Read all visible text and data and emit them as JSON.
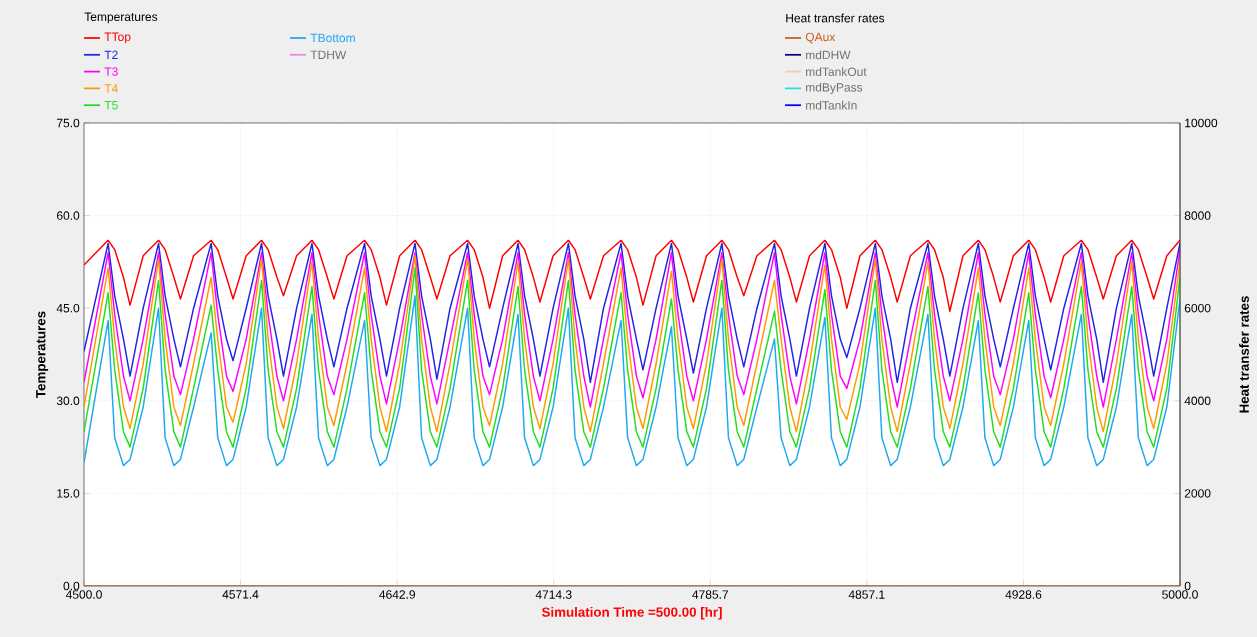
{
  "chart_data": {
    "type": "line",
    "xlabel": "Simulation Time =500.00 [hr]",
    "ylabel": "Temperatures",
    "y2label": "Heat transfer rates",
    "xlim": [
      4500,
      5000
    ],
    "ylim": [
      0,
      75
    ],
    "y2lim": [
      0,
      10000
    ],
    "xticks": [
      {
        "value": 4500,
        "label": "4500.0"
      },
      4571.4,
      4642.9,
      4714.3,
      4785.7,
      4857.1,
      4928.6,
      {
        "value": 5000,
        "label": "5000.0"
      }
    ],
    "yticks": [
      {
        "value": 0,
        "label": "0.0"
      },
      {
        "value": 15,
        "label": "15.0"
      },
      {
        "value": 30,
        "label": "30.0"
      },
      {
        "value": 45,
        "label": "45.0"
      },
      {
        "value": 60,
        "label": "60.0"
      },
      {
        "value": 75,
        "label": "75.0"
      }
    ],
    "y2ticks": [
      0,
      2000,
      4000,
      6000,
      8000,
      10000
    ],
    "grid": true,
    "legend": "top",
    "legend_title": "Temperatures",
    "annotations": [
      "Heat transfer rates"
    ],
    "x": [
      4500,
      4511,
      4514,
      4518,
      4521,
      4527,
      4534,
      4537,
      4541,
      4544,
      4550,
      4558,
      4561,
      4565,
      4568,
      4574,
      4581,
      4584,
      4588,
      4591,
      4597,
      4604,
      4607,
      4611,
      4614,
      4620,
      4628,
      4631,
      4635,
      4638,
      4644,
      4651,
      4654,
      4658,
      4661,
      4667,
      4675,
      4678,
      4682,
      4685,
      4691,
      4698,
      4701,
      4705,
      4708,
      4714,
      4721,
      4724,
      4728,
      4731,
      4737,
      4745,
      4748,
      4752,
      4755,
      4761,
      4768,
      4771,
      4775,
      4778,
      4784,
      4791,
      4794,
      4798,
      4801,
      4807,
      4815,
      4818,
      4822,
      4825,
      4831,
      4838,
      4841,
      4845,
      4848,
      4854,
      4861,
      4864,
      4868,
      4871,
      4877,
      4885,
      4888,
      4892,
      4895,
      4901,
      4908,
      4911,
      4915,
      4918,
      4924,
      4931,
      4934,
      4938,
      4941,
      4947,
      4955,
      4958,
      4962,
      4965,
      4971,
      4978,
      4981,
      4985,
      4988,
      4994,
      5000
    ],
    "series": [
      {
        "name": "TTop",
        "color": "#ff0000",
        "values": [
          52,
          56,
          54.5,
          50,
          45.5,
          53.5,
          56,
          54.5,
          50,
          46.5,
          53.5,
          56,
          54.5,
          50,
          46.5,
          53.5,
          56,
          54.5,
          50,
          47,
          53.5,
          56,
          54.5,
          50,
          46.5,
          53.5,
          56,
          54.5,
          50,
          45.5,
          53.5,
          56,
          54.5,
          50,
          46.5,
          53.5,
          56,
          54.5,
          50,
          45,
          53.5,
          56,
          54.5,
          50,
          46,
          53.5,
          56,
          54.5,
          50,
          46.5,
          53.5,
          56,
          54.5,
          50,
          45.5,
          53.5,
          56,
          54.5,
          50,
          46,
          53.5,
          56,
          54.5,
          50,
          47,
          53.5,
          56,
          54.5,
          50,
          46,
          53.5,
          56,
          54.5,
          50,
          45,
          53.5,
          56,
          54.5,
          50,
          46,
          53.5,
          56,
          54.5,
          50,
          44.5,
          53.5,
          56,
          54.5,
          50,
          46,
          53.5,
          56,
          54.5,
          50,
          46,
          53.5,
          56,
          54.5,
          50,
          46.5,
          53.5,
          56,
          54.5,
          50,
          46.5,
          53.5,
          56
        ]
      },
      {
        "name": "T2",
        "color": "#2222e6",
        "values": [
          38,
          55.5,
          47,
          40,
          34,
          45,
          55.5,
          47,
          40,
          35.5,
          45,
          55.5,
          47,
          40,
          36.5,
          45,
          55.5,
          47,
          40,
          34,
          45,
          55.5,
          47,
          40,
          35.5,
          45,
          55.5,
          47,
          40,
          34,
          45,
          55.5,
          47,
          40,
          33.5,
          45,
          55.5,
          47,
          40,
          35.5,
          45,
          55.5,
          47,
          40,
          34,
          45,
          55.5,
          47,
          40,
          33,
          45,
          55.5,
          47,
          40,
          35,
          45,
          55.5,
          47,
          40,
          34.5,
          45,
          55.5,
          47,
          40,
          35.5,
          45,
          55.5,
          47,
          40,
          34,
          45,
          55.5,
          47,
          40,
          37,
          45,
          55.5,
          47,
          40,
          33,
          45,
          55.5,
          47,
          40,
          34,
          45,
          55.5,
          47,
          40,
          35.5,
          45,
          55.5,
          47,
          40,
          35,
          45,
          55.5,
          47,
          40,
          33,
          45,
          55.5,
          47,
          40,
          34,
          45,
          55.5
        ]
      },
      {
        "name": "T3",
        "color": "#ff00ff",
        "values": [
          33,
          54,
          44,
          34,
          30,
          40,
          54,
          44,
          34,
          31,
          40,
          54,
          44,
          34,
          31.5,
          40,
          54,
          44,
          34,
          30,
          40,
          54,
          44,
          34,
          31,
          40,
          54,
          44,
          34,
          29.5,
          40,
          54,
          44,
          34,
          29.5,
          40,
          54,
          44,
          34,
          31,
          40,
          54,
          44,
          34,
          30,
          40,
          54,
          44,
          34,
          29,
          40,
          54,
          44,
          34,
          30.5,
          40,
          54,
          44,
          34,
          30,
          40,
          54,
          44,
          34,
          31,
          40,
          54,
          44,
          34,
          29.5,
          40,
          54,
          44,
          34,
          32,
          40,
          54,
          44,
          34,
          29,
          40,
          54,
          44,
          34,
          30,
          40,
          54,
          44,
          34,
          31,
          40,
          54,
          44,
          34,
          30.5,
          40,
          54,
          44,
          34,
          29,
          40,
          54,
          44,
          34,
          30,
          40,
          54.5
        ]
      },
      {
        "name": "T4",
        "color": "#ff9900",
        "values": [
          29,
          51.5,
          40,
          29,
          25.5,
          36,
          53,
          40,
          29,
          26,
          36,
          50,
          40,
          29,
          26.5,
          36,
          53,
          40,
          29,
          25.5,
          36,
          52.5,
          40,
          29,
          26,
          36,
          51.5,
          40,
          29,
          25,
          36,
          53.5,
          40,
          29,
          25,
          36,
          53,
          40,
          29,
          26,
          36,
          52.5,
          40,
          29,
          25.5,
          36,
          53,
          40,
          29,
          25,
          36,
          51.5,
          40,
          29,
          25.5,
          36,
          51,
          40,
          29,
          25.5,
          36,
          53,
          40,
          29,
          26,
          36,
          49.5,
          40,
          29,
          25,
          36,
          52,
          40,
          29,
          27,
          36,
          53,
          40,
          29,
          25,
          36,
          52.5,
          40,
          29,
          25.5,
          36,
          51.5,
          40,
          29,
          26,
          36,
          51.5,
          40,
          29,
          26,
          36,
          52.5,
          40,
          29,
          25,
          36,
          52.5,
          40,
          29,
          25.5,
          36,
          52.5
        ]
      },
      {
        "name": "T5",
        "color": "#22dd22",
        "values": [
          25,
          47.5,
          35,
          25,
          22.5,
          32,
          49.5,
          35,
          25,
          22.5,
          32,
          45.5,
          35,
          25,
          22.5,
          32,
          49.5,
          35,
          25,
          22.5,
          32,
          48.5,
          35,
          25,
          22.5,
          32,
          47.5,
          35,
          25,
          22.5,
          32,
          51.5,
          35,
          25,
          22.5,
          32,
          49.5,
          35,
          25,
          22.5,
          32,
          48.5,
          35,
          25,
          22.5,
          32,
          49.5,
          35,
          25,
          22.5,
          32,
          47.5,
          35,
          25,
          22.5,
          32,
          46.5,
          35,
          25,
          22.5,
          32,
          49.5,
          35,
          25,
          22.5,
          32,
          44.5,
          35,
          25,
          22.5,
          32,
          48,
          35,
          25,
          22.5,
          32,
          49.5,
          35,
          25,
          22.5,
          32,
          48.5,
          35,
          25,
          22.5,
          32,
          47.5,
          35,
          25,
          22.5,
          32,
          47.5,
          35,
          25,
          22.5,
          32,
          48.5,
          35,
          25,
          22.5,
          32,
          48.5,
          35,
          25,
          22.5,
          32,
          50
        ]
      },
      {
        "name": "TBottom",
        "color": "#1ea8f0",
        "values": [
          20,
          43,
          24,
          19.5,
          20.5,
          29,
          45,
          24,
          19.5,
          20.5,
          29,
          41,
          24,
          19.5,
          20.5,
          29,
          45,
          24,
          19.5,
          20.5,
          29,
          44,
          24,
          19.5,
          20.5,
          29,
          43,
          24,
          19.5,
          20.5,
          29,
          47,
          24,
          19.5,
          20.5,
          29,
          45,
          24,
          19.5,
          20.5,
          29,
          44,
          24,
          19.5,
          20.5,
          29,
          45,
          24,
          19.5,
          20.5,
          29,
          43,
          24,
          19.5,
          20.5,
          29,
          42,
          24,
          19.5,
          20.5,
          29,
          45,
          24,
          19.5,
          20.5,
          29,
          40,
          24,
          19.5,
          20.5,
          29,
          43.5,
          24,
          19.5,
          20.5,
          29,
          45,
          24,
          19.5,
          20.5,
          29,
          44,
          24,
          19.5,
          20.5,
          29,
          43,
          24,
          19.5,
          20.5,
          29,
          43,
          24,
          19.5,
          20.5,
          29,
          44,
          24,
          19.5,
          20.5,
          29,
          44,
          24,
          19.5,
          20.5,
          29,
          46.5
        ]
      },
      {
        "name": "TDHW",
        "color": "#f080f0",
        "values": [
          null,
          null,
          null,
          null,
          null,
          null,
          null,
          null,
          null,
          null,
          null,
          null,
          null,
          null,
          null,
          null,
          null,
          null,
          null,
          null,
          null,
          null,
          null,
          null,
          null,
          null,
          null,
          null,
          null,
          null,
          null,
          null,
          null,
          null,
          null,
          null,
          null,
          null,
          null,
          null,
          null,
          null,
          null,
          null,
          null,
          null,
          null,
          null,
          null,
          null,
          null,
          null,
          null,
          null,
          null,
          null,
          null,
          null,
          null,
          null,
          null,
          null,
          null,
          null,
          null,
          null,
          null,
          null,
          null,
          null,
          null,
          null,
          null,
          null,
          null,
          null,
          null,
          null,
          null,
          null,
          null,
          null,
          null,
          null,
          null,
          null,
          null,
          null,
          null,
          null,
          null,
          null,
          null,
          null,
          null,
          null,
          null,
          null,
          null,
          null,
          null,
          null,
          null,
          null,
          null,
          null,
          null
        ]
      },
      {
        "name": "QAux",
        "color": "#c85a1e",
        "axis": "y2",
        "x": [
          4500,
          5000
        ],
        "values": [
          0,
          0
        ]
      },
      {
        "name": "mdDHW",
        "color": "#000080",
        "axis": "y2",
        "values": [
          null,
          null,
          null,
          null,
          null,
          null,
          null,
          null,
          null,
          null,
          null,
          null,
          null,
          null,
          null,
          null,
          null,
          null,
          null,
          null,
          null,
          null,
          null,
          null,
          null,
          null,
          null,
          null,
          null,
          null,
          null,
          null,
          null,
          null,
          null,
          null,
          null,
          null,
          null,
          null,
          null,
          null,
          null,
          null,
          null,
          null,
          null,
          null,
          null,
          null,
          null,
          null,
          null,
          null,
          null,
          null,
          null,
          null,
          null,
          null,
          null,
          null,
          null,
          null,
          null,
          null,
          null,
          null,
          null,
          null,
          null,
          null,
          null,
          null,
          null,
          null,
          null,
          null,
          null,
          null,
          null,
          null,
          null,
          null,
          null,
          null,
          null,
          null,
          null,
          null,
          null,
          null,
          null,
          null,
          null,
          null,
          null,
          null,
          null,
          null,
          null,
          null,
          null,
          null,
          null,
          null,
          null
        ]
      },
      {
        "name": "mdTankOut",
        "color": "#ffc8a0",
        "axis": "y2",
        "values": [
          null,
          null,
          null,
          null,
          null,
          null,
          null,
          null,
          null,
          null,
          null,
          null,
          null,
          null,
          null,
          null,
          null,
          null,
          null,
          null,
          null,
          null,
          null,
          null,
          null,
          null,
          null,
          null,
          null,
          null,
          null,
          null,
          null,
          null,
          null,
          null,
          null,
          null,
          null,
          null,
          null,
          null,
          null,
          null,
          null,
          null,
          null,
          null,
          null,
          null,
          null,
          null,
          null,
          null,
          null,
          null,
          null,
          null,
          null,
          null,
          null,
          null,
          null,
          null,
          null,
          null,
          null,
          null,
          null,
          null,
          null,
          null,
          null,
          null,
          null,
          null,
          null,
          null,
          null,
          null,
          null,
          null,
          null,
          null,
          null,
          null,
          null,
          null,
          null,
          null,
          null,
          null,
          null,
          null,
          null,
          null,
          null,
          null,
          null,
          null,
          null,
          null,
          null,
          null,
          null,
          null,
          null
        ]
      },
      {
        "name": "mdByPass",
        "color": "#20e0e0",
        "axis": "y2",
        "values": [
          null,
          null,
          null,
          null,
          null,
          null,
          null,
          null,
          null,
          null,
          null,
          null,
          null,
          null,
          null,
          null,
          null,
          null,
          null,
          null,
          null,
          null,
          null,
          null,
          null,
          null,
          null,
          null,
          null,
          null,
          null,
          null,
          null,
          null,
          null,
          null,
          null,
          null,
          null,
          null,
          null,
          null,
          null,
          null,
          null,
          null,
          null,
          null,
          null,
          null,
          null,
          null,
          null,
          null,
          null,
          null,
          null,
          null,
          null,
          null,
          null,
          null,
          null,
          null,
          null,
          null,
          null,
          null,
          null,
          null,
          null,
          null,
          null,
          null,
          null,
          null,
          null,
          null,
          null,
          null,
          null,
          null,
          null,
          null,
          null,
          null,
          null,
          null,
          null,
          null,
          null,
          null,
          null,
          null,
          null,
          null,
          null,
          null,
          null,
          null,
          null,
          null,
          null,
          null,
          null,
          null,
          null
        ]
      },
      {
        "name": "mdTankIn",
        "color": "#0000ff",
        "axis": "y2",
        "values": [
          null,
          null,
          null,
          null,
          null,
          null,
          null,
          null,
          null,
          null,
          null,
          null,
          null,
          null,
          null,
          null,
          null,
          null,
          null,
          null,
          null,
          null,
          null,
          null,
          null,
          null,
          null,
          null,
          null,
          null,
          null,
          null,
          null,
          null,
          null,
          null,
          null,
          null,
          null,
          null,
          null,
          null,
          null,
          null,
          null,
          null,
          null,
          null,
          null,
          null,
          null,
          null,
          null,
          null,
          null,
          null,
          null,
          null,
          null,
          null,
          null,
          null,
          null,
          null,
          null,
          null,
          null,
          null,
          null,
          null,
          null,
          null,
          null,
          null,
          null,
          null,
          null,
          null,
          null,
          null,
          null,
          null,
          null,
          null,
          null,
          null,
          null,
          null,
          null,
          null,
          null,
          null,
          null,
          null,
          null,
          null,
          null,
          null,
          null,
          null,
          null,
          null,
          null,
          null,
          null,
          null,
          null
        ]
      }
    ]
  }
}
